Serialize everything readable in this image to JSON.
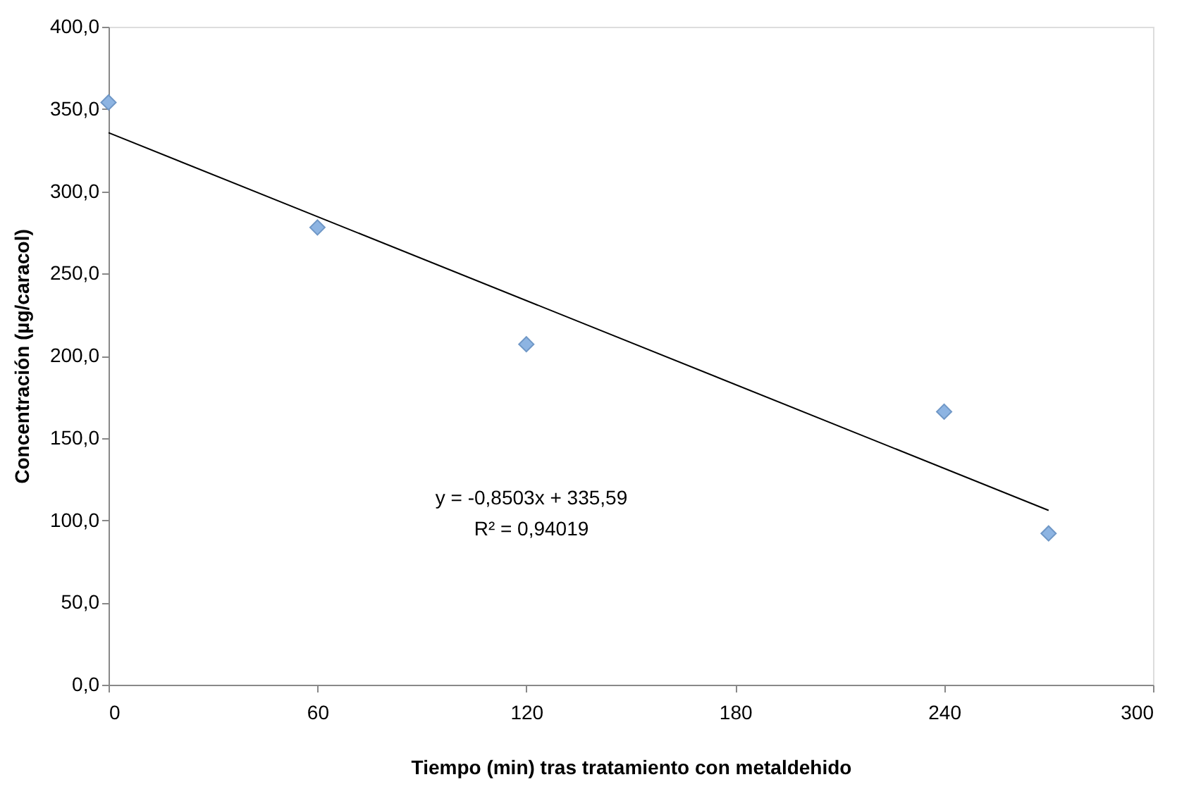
{
  "chart_data": {
    "type": "scatter",
    "xlabel": "Tiempo (min) tras tratamiento con metaldehido",
    "ylabel": "Concentración (µg/caracol)",
    "series": [
      {
        "color": "#8db4e2",
        "marker": "diamond",
        "x": [
          0,
          60,
          120,
          240,
          270
        ],
        "values": [
          354,
          278,
          207,
          166,
          92
        ]
      },
      {
        "type": "line",
        "color": "#000000",
        "marker": "none",
        "line_style": "solid",
        "x": [
          0,
          270
        ],
        "values": [
          335.6,
          106.0
        ]
      }
    ],
    "xlim": [
      0,
      300
    ],
    "xticks": [
      0,
      60,
      120,
      180,
      240,
      300
    ],
    "ylim": [
      0,
      400
    ],
    "yticks": [
      {
        "value": 0,
        "label": "0,0"
      },
      {
        "value": 50,
        "label": "50,0"
      },
      {
        "value": 100,
        "label": "100,0"
      },
      {
        "value": 150,
        "label": "150,0"
      },
      {
        "value": 200,
        "label": "200,0"
      },
      {
        "value": 250,
        "label": "250,0"
      },
      {
        "value": 300,
        "label": "300,0"
      },
      {
        "value": 350,
        "label": "350,0"
      },
      {
        "value": 400,
        "label": "400,0"
      }
    ],
    "grid": false,
    "legend": false,
    "annotations": [
      "y = -0,8503x + 335,59",
      "R² = 0,94019"
    ]
  }
}
